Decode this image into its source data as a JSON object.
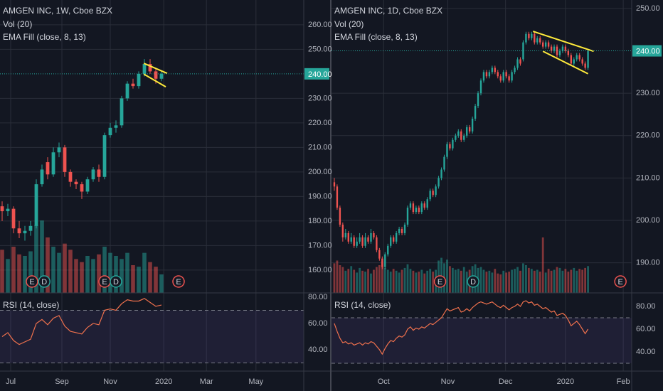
{
  "chart_data": [
    {
      "type": "candlestick",
      "title": "AMGEN INC, 1W, Cboe BZX",
      "volume_label": "Vol (20)",
      "ema_label": "EMA Fill (close, 8, 13)",
      "rsi_label": "RSI (14, close)",
      "up_color": "#26a69a",
      "down_color": "#ef5350",
      "rsi_color": "#f0714d",
      "trend_color": "#ffeb3b",
      "grid": true,
      "xlim": [
        -0.375,
        53
      ],
      "ylim": [
        150.7,
        270.1
      ],
      "vlim": [
        0,
        60
      ],
      "rsi_ylim": [
        23.8,
        83.2
      ],
      "rsi_levels": [
        70,
        30
      ],
      "xticks": [
        {
          "value": 1.5,
          "label": "Jul"
        },
        {
          "value": 10.5,
          "label": "Sep"
        },
        {
          "value": 19,
          "label": "Nov"
        },
        {
          "value": 28.4,
          "label": "2020"
        },
        {
          "value": 35.9,
          "label": "Mar"
        },
        {
          "value": 44.6,
          "label": "May"
        }
      ],
      "yticks": [
        {
          "value": 160,
          "label": "160.00"
        },
        {
          "value": 170,
          "label": "170.00"
        },
        {
          "value": 180,
          "label": "180.00"
        },
        {
          "value": 190,
          "label": "190.00"
        },
        {
          "value": 200,
          "label": "200.00"
        },
        {
          "value": 210,
          "label": "210.00"
        },
        {
          "value": 220,
          "label": "220.00"
        },
        {
          "value": 230,
          "label": "230.00"
        },
        {
          "value": 250,
          "label": "250.00"
        },
        {
          "value": 260,
          "label": "260.00"
        }
      ],
      "rsi_yticks": [
        {
          "value": 40,
          "label": "40.00"
        },
        {
          "value": 60,
          "label": "60.00"
        },
        {
          "value": 80,
          "label": "80.00"
        }
      ],
      "last_price": {
        "value": 240,
        "label": "240.00"
      },
      "candles": [
        [
          186,
          188,
          180,
          184
        ],
        [
          184,
          187,
          182,
          185
        ],
        [
          185,
          186,
          175,
          177
        ],
        [
          177,
          180,
          173,
          175
        ],
        [
          175,
          178,
          172,
          176
        ],
        [
          176,
          180,
          174,
          178
        ],
        [
          178,
          197,
          177,
          195
        ],
        [
          195,
          203,
          194,
          201
        ],
        [
          204,
          206,
          197,
          199
        ],
        [
          199,
          210,
          198,
          208
        ],
        [
          208,
          212,
          206,
          210
        ],
        [
          210,
          211,
          198,
          200
        ],
        [
          200,
          201,
          194,
          196
        ],
        [
          196,
          197,
          193,
          195
        ],
        [
          195,
          196,
          189,
          192
        ],
        [
          192,
          198,
          191,
          197
        ],
        [
          197,
          202,
          196,
          201
        ],
        [
          201,
          203,
          196,
          198
        ],
        [
          198,
          216,
          197,
          215
        ],
        [
          215,
          220,
          214,
          218
        ],
        [
          218,
          221,
          216,
          219
        ],
        [
          219,
          231,
          218,
          230
        ],
        [
          230,
          237,
          229,
          236
        ],
        [
          236,
          238,
          234,
          235
        ],
        [
          235,
          241,
          234,
          240
        ],
        [
          240,
          246,
          239,
          244
        ],
        [
          244,
          246,
          240,
          241
        ],
        [
          241,
          242,
          236,
          238
        ],
        [
          238,
          241,
          237,
          240
        ]
      ],
      "volume": [
        28,
        22,
        30,
        25,
        24,
        27,
        44,
        47,
        36,
        30,
        26,
        32,
        28,
        22,
        20,
        24,
        22,
        25,
        30,
        26,
        24,
        22,
        26,
        18,
        17,
        26,
        20,
        17,
        12
      ],
      "rsi": [
        50,
        53,
        47,
        44,
        46,
        48,
        60,
        63,
        59,
        64,
        66,
        58,
        54,
        53,
        52,
        57,
        60,
        59,
        70,
        71,
        70,
        75,
        78,
        77,
        77,
        79,
        76,
        73,
        74
      ],
      "events": [
        {
          "label": "E",
          "x": 5.25
        },
        {
          "label": "D",
          "x": 7.4
        },
        {
          "label": "E",
          "x": 18
        },
        {
          "label": "D",
          "x": 20
        },
        {
          "label": "E",
          "x": 31
        }
      ],
      "trendlines": [
        {
          "x": [
            24.9,
            29
          ],
          "y": [
            244.3,
            240.2
          ]
        },
        {
          "x": [
            24.9,
            28.75
          ],
          "y": [
            239.9,
            234.7
          ]
        }
      ]
    },
    {
      "type": "candlestick",
      "title": "AMGEN INC, 1D, Cboe BZX",
      "volume_label": "Vol (20)",
      "ema_label": "EMA Fill (close, 8, 13)",
      "rsi_label": "RSI (14, close)",
      "up_color": "#26a69a",
      "down_color": "#ef5350",
      "rsi_color": "#f0714d",
      "trend_color": "#ffeb3b",
      "grid": true,
      "xlim": [
        -1,
        105.5
      ],
      "ylim": [
        182.9,
        252
      ],
      "vlim": [
        0,
        10
      ],
      "rsi_ylim": [
        23.1,
        91.9
      ],
      "rsi_levels": [
        70,
        30
      ],
      "xticks": [
        {
          "value": 17.5,
          "label": "Oct"
        },
        {
          "value": 40.25,
          "label": "Nov"
        },
        {
          "value": 60.75,
          "label": "Dec"
        },
        {
          "value": 82,
          "label": "2020"
        },
        {
          "value": 102.5,
          "label": "Feb"
        }
      ],
      "yticks": [
        {
          "value": 190,
          "label": "190.00"
        },
        {
          "value": 200,
          "label": "200.00"
        },
        {
          "value": 210,
          "label": "210.00"
        },
        {
          "value": 220,
          "label": "220.00"
        },
        {
          "value": 230,
          "label": "230.00"
        },
        {
          "value": 250,
          "label": "250.00"
        }
      ],
      "rsi_yticks": [
        {
          "value": 40,
          "label": "40.00"
        },
        {
          "value": 60,
          "label": "60.00"
        },
        {
          "value": 80,
          "label": "80.00"
        }
      ],
      "last_price": {
        "value": 240,
        "label": "240.00"
      },
      "candles": [
        [
          209,
          210,
          207,
          208
        ],
        [
          208,
          208.5,
          202.5,
          203
        ],
        [
          203,
          203.5,
          198.5,
          199
        ],
        [
          199,
          199.5,
          195,
          196
        ],
        [
          196,
          198,
          195.5,
          197
        ],
        [
          197,
          197.5,
          194.5,
          195
        ],
        [
          195,
          197,
          194.5,
          196
        ],
        [
          196,
          196.5,
          193.5,
          194
        ],
        [
          194,
          196,
          193.5,
          195
        ],
        [
          195,
          197,
          194.5,
          196
        ],
        [
          196,
          196.5,
          193.5,
          194
        ],
        [
          194,
          197,
          193.5,
          196
        ],
        [
          196,
          196.5,
          194.5,
          195
        ],
        [
          195,
          198,
          194.5,
          197
        ],
        [
          197,
          197.5,
          195.5,
          196
        ],
        [
          196,
          196.5,
          192.5,
          193
        ],
        [
          193,
          193.5,
          190.5,
          191
        ],
        [
          191,
          191.5,
          188.5,
          189
        ],
        [
          189,
          192.5,
          188.5,
          192
        ],
        [
          192,
          194.5,
          191.5,
          194
        ],
        [
          194,
          196.5,
          193.5,
          196
        ],
        [
          196,
          196.5,
          194.5,
          195
        ],
        [
          195,
          197.5,
          194.5,
          197
        ],
        [
          197,
          198.5,
          196.5,
          198
        ],
        [
          198,
          198.5,
          196.5,
          197
        ],
        [
          197,
          199.5,
          196.5,
          199
        ],
        [
          199,
          203.5,
          198.5,
          203
        ],
        [
          203,
          204.5,
          202.5,
          204
        ],
        [
          204,
          204.5,
          201.5,
          202
        ],
        [
          202,
          203.5,
          201.5,
          203
        ],
        [
          203,
          203.5,
          201.5,
          202
        ],
        [
          202,
          204.5,
          201.5,
          204
        ],
        [
          204,
          204.5,
          202.5,
          203
        ],
        [
          203,
          205.5,
          202.5,
          205
        ],
        [
          205,
          207.5,
          204.5,
          207
        ],
        [
          207,
          207.5,
          205.5,
          206
        ],
        [
          206,
          208.5,
          205.5,
          208
        ],
        [
          208,
          210.5,
          207.5,
          210
        ],
        [
          210,
          212.5,
          209.5,
          212
        ],
        [
          212,
          215.5,
          211.5,
          215
        ],
        [
          215,
          218.5,
          214.5,
          218
        ],
        [
          218,
          218.5,
          216.5,
          217
        ],
        [
          217,
          219.5,
          216.5,
          219
        ],
        [
          219,
          220.5,
          218.5,
          220
        ],
        [
          220,
          221.5,
          219.5,
          221
        ],
        [
          221,
          221.5,
          218.5,
          219
        ],
        [
          219,
          220.5,
          218.5,
          220
        ],
        [
          220,
          222.5,
          219.5,
          222
        ],
        [
          222,
          222.5,
          220.5,
          221
        ],
        [
          221,
          224.5,
          220.5,
          224
        ],
        [
          224,
          227.5,
          223.5,
          227
        ],
        [
          227,
          230.5,
          226.5,
          230
        ],
        [
          230,
          233.5,
          229.5,
          233
        ],
        [
          233,
          235.5,
          232.5,
          235
        ],
        [
          235,
          235.5,
          233.5,
          234
        ],
        [
          234,
          235.5,
          233.5,
          235
        ],
        [
          235,
          236.5,
          234.5,
          236
        ],
        [
          236,
          236.5,
          234.5,
          235
        ],
        [
          235,
          235.5,
          233.5,
          234
        ],
        [
          234,
          234.5,
          232.5,
          233
        ],
        [
          233,
          235.5,
          232.5,
          235
        ],
        [
          235,
          235.5,
          233.5,
          234
        ],
        [
          234,
          234.5,
          232.5,
          233
        ],
        [
          233,
          235.5,
          232.5,
          235
        ],
        [
          235,
          236.5,
          234.5,
          236
        ],
        [
          236,
          238.5,
          235.5,
          238
        ],
        [
          238,
          238.5,
          236.5,
          237
        ],
        [
          238,
          242.5,
          237.5,
          242
        ],
        [
          242,
          244.5,
          241.5,
          244
        ],
        [
          244,
          244.5,
          242.5,
          243
        ],
        [
          243,
          244.5,
          242.5,
          244
        ],
        [
          244,
          244.5,
          241.5,
          242
        ],
        [
          242,
          243.5,
          241.5,
          243
        ],
        [
          243,
          243.5,
          241.5,
          242
        ],
        [
          242,
          242.5,
          240.5,
          241
        ],
        [
          241,
          242.5,
          240.5,
          242
        ],
        [
          242,
          242.5,
          240.5,
          241
        ],
        [
          241,
          241.5,
          239.5,
          240
        ],
        [
          240,
          241.5,
          239.5,
          241
        ],
        [
          241,
          241.5,
          238.5,
          239
        ],
        [
          239,
          240.5,
          238.5,
          240
        ],
        [
          240,
          241.5,
          239.5,
          241
        ],
        [
          241,
          241.5,
          239.5,
          240
        ],
        [
          240,
          240.5,
          238.5,
          239
        ],
        [
          239,
          239.5,
          236.5,
          237
        ],
        [
          237,
          238.5,
          236.5,
          238
        ],
        [
          238,
          239.5,
          237.5,
          239
        ],
        [
          239,
          239.5,
          237.5,
          238
        ],
        [
          238,
          238.5,
          236.5,
          237
        ],
        [
          237,
          237.5,
          235.5,
          236
        ],
        [
          236,
          240.5,
          235.5,
          240
        ]
      ],
      "volume": [
        3.2,
        3.5,
        3.0,
        2.8,
        2.4,
        2.6,
        2.9,
        2.5,
        2.2,
        2.7,
        2.4,
        2.3,
        2.6,
        2.1,
        2.5,
        2.8,
        3.0,
        3.4,
        2.7,
        2.5,
        2.3,
        2.6,
        2.4,
        2.2,
        2.5,
        2.7,
        3.1,
        2.6,
        2.4,
        2.2,
        2.3,
        2.5,
        2.1,
        2.4,
        2.6,
        2.3,
        2.5,
        3.5,
        3.8,
        3.2,
        3.6,
        2.9,
        2.7,
        2.5,
        2.6,
        2.4,
        2.8,
        2.3,
        2.5,
        2.9,
        3.1,
        2.7,
        2.8,
        2.5,
        2.3,
        2.4,
        2.2,
        2.6,
        2.1,
        2.0,
        2.4,
        2.2,
        2.3,
        2.5,
        2.6,
        2.8,
        2.4,
        3.2,
        3.0,
        2.7,
        2.6,
        2.4,
        2.5,
        2.3,
        6.0,
        2.2,
        2.6,
        2.4,
        2.5,
        2.8,
        2.7,
        2.4,
        2.6,
        2.3,
        2.5,
        2.7,
        2.4,
        2.6,
        2.5,
        2.7,
        2.9
      ],
      "rsi": [
        65,
        58,
        52,
        48,
        49,
        47,
        48,
        46,
        47,
        48,
        46,
        48,
        47,
        49,
        48,
        45,
        42,
        38,
        43,
        47,
        50,
        49,
        52,
        54,
        53,
        55,
        60,
        62,
        59,
        61,
        60,
        62,
        61,
        63,
        65,
        64,
        66,
        68,
        70,
        74,
        78,
        76,
        77,
        78,
        79,
        75,
        76,
        78,
        76,
        79,
        81,
        83,
        84,
        83,
        82,
        83,
        84,
        82,
        80,
        79,
        81,
        79,
        77,
        79,
        80,
        82,
        80,
        84,
        85,
        83,
        84,
        81,
        82,
        80,
        78,
        79,
        77,
        75,
        76,
        72,
        73,
        74,
        72,
        68,
        63,
        65,
        67,
        64,
        60,
        56,
        60
      ],
      "events": [
        {
          "label": "E",
          "x": 37.5
        },
        {
          "label": "D",
          "x": 49.25
        },
        {
          "label": "E",
          "x": 101.5
        }
      ],
      "trendlines": [
        {
          "x": [
            70.5,
            92
          ],
          "y": [
            244.6,
            239.9
          ]
        },
        {
          "x": [
            74,
            90
          ],
          "y": [
            239.9,
            234.6
          ]
        }
      ]
    }
  ]
}
